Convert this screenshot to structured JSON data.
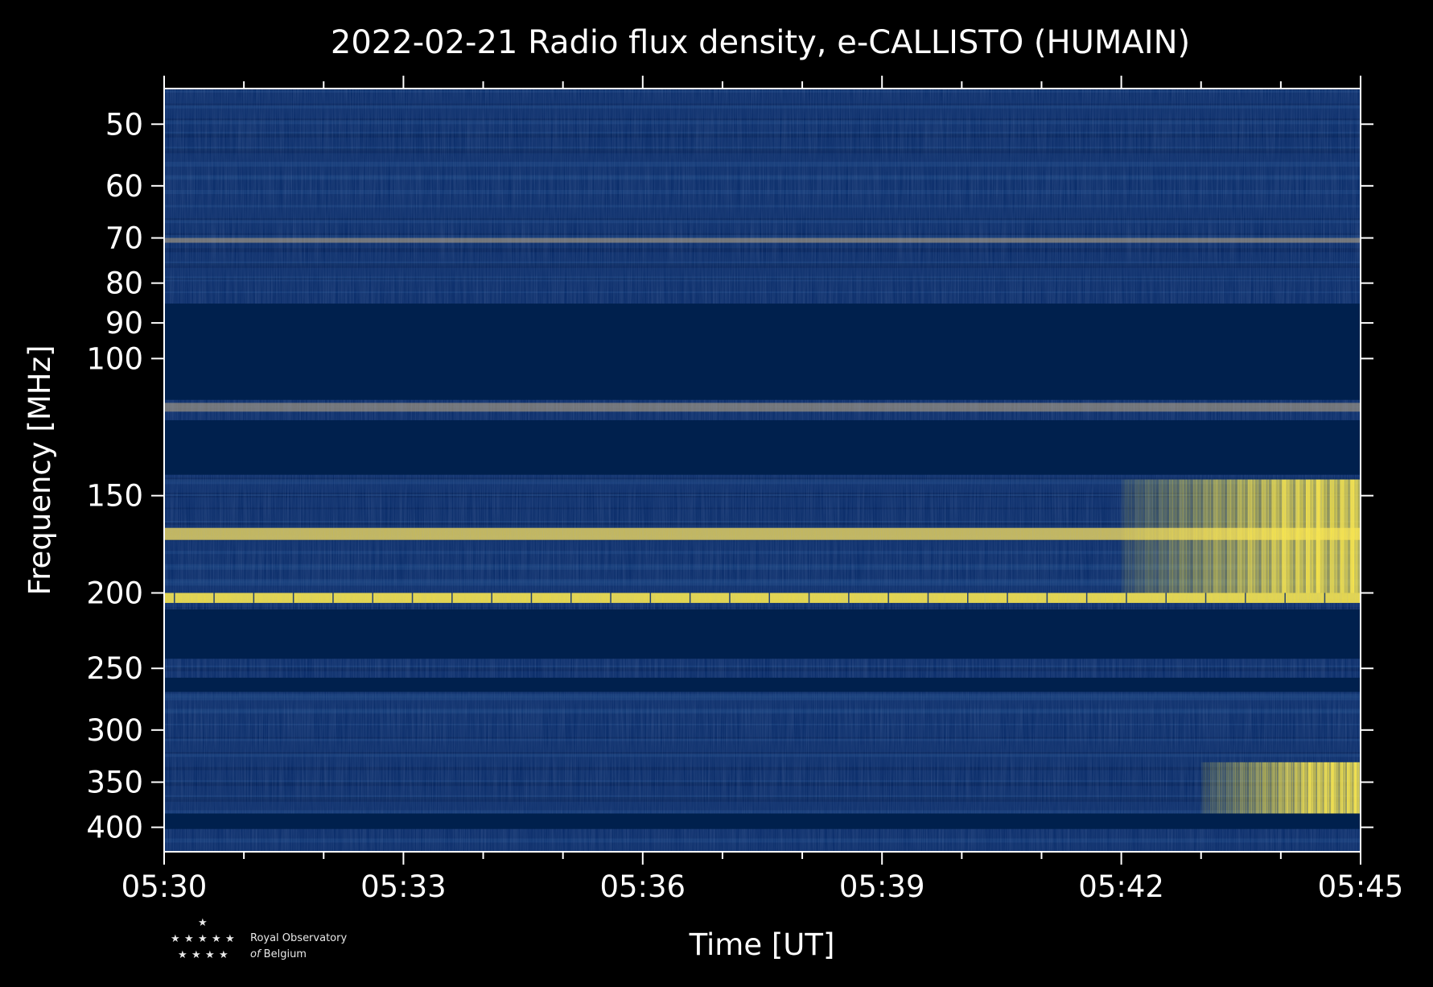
{
  "chart_data": {
    "type": "heatmap",
    "title": "2022-02-21 Radio flux density, e-CALLISTO (HUMAIN)",
    "xlabel": "Time [UT]",
    "ylabel": "Frequency [MHz]",
    "x_ticks": [
      "05:30",
      "05:33",
      "05:36",
      "05:39",
      "05:42",
      "05:45"
    ],
    "xlim": [
      "05:30",
      "05:45"
    ],
    "y_scale": "log",
    "y_ticks": [
      50,
      60,
      70,
      80,
      90,
      100,
      150,
      200,
      250,
      300,
      350,
      400
    ],
    "ylim": [
      45,
      430
    ],
    "colormap": "cividis",
    "colors": {
      "low": "#00204d",
      "mid": "#7c7b78",
      "high": "#ffea46",
      "background": "#000000"
    },
    "masked_bands_mhz": [
      [
        85,
        113
      ],
      [
        120,
        141
      ],
      [
        210,
        243
      ],
      [
        257,
        268
      ],
      [
        384,
        402
      ]
    ],
    "bright_emission_bands_mhz": [
      {
        "freq": [
          200,
          206
        ],
        "start": "05:30",
        "end": "05:45",
        "level": "high"
      },
      {
        "freq": [
          165,
          171
        ],
        "start": "05:30",
        "end": "05:45",
        "level": "medium-high"
      },
      {
        "freq": [
          70,
          71
        ],
        "start": "05:30",
        "end": "05:45",
        "level": "medium"
      },
      {
        "freq": [
          114,
          117
        ],
        "start": "05:30",
        "end": "05:45",
        "level": "medium"
      },
      {
        "freq": [
          143,
          200
        ],
        "start": "05:42",
        "end": "05:45",
        "level": "high"
      },
      {
        "freq": [
          330,
          384
        ],
        "start": "05:43",
        "end": "05:45",
        "level": "high"
      }
    ]
  },
  "logo": {
    "line1": "Royal Observatory",
    "line2_of": "of",
    "line2": "Belgium"
  }
}
